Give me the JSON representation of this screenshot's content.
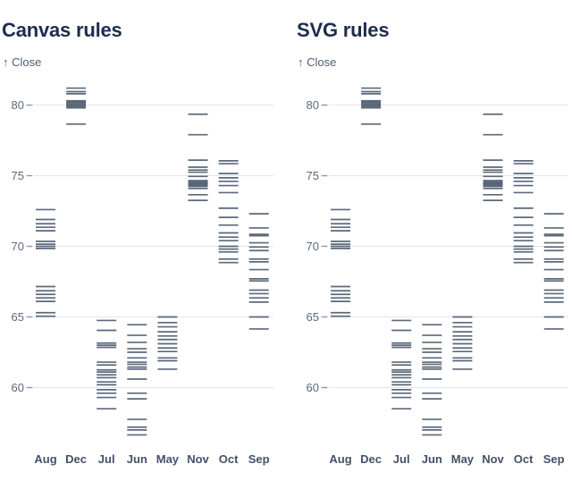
{
  "charts": [
    {
      "title": "Canvas rules",
      "legend_label": "↑ Close"
    },
    {
      "title": "SVG rules",
      "legend_label": "↑ Close"
    }
  ],
  "chart_data": {
    "type": "tick",
    "note_both_charts_show_same_data": true,
    "ylabel": "Close",
    "categories": [
      "Aug",
      "Dec",
      "Jul",
      "Jun",
      "May",
      "Nov",
      "Oct",
      "Sep"
    ],
    "yticks": [
      80,
      75,
      70,
      65,
      60
    ],
    "ylim": [
      56.3,
      81.6
    ],
    "grid": true,
    "series": [
      {
        "name": "Aug",
        "values": [
          72.6,
          71.9,
          71.6,
          71.35,
          71.1,
          70.35,
          70.15,
          70.0,
          69.85,
          67.15,
          66.85,
          66.6,
          66.35,
          66.1,
          65.3,
          65.05
        ]
      },
      {
        "name": "Dec",
        "values": [
          81.2,
          80.95,
          80.8,
          80.3,
          80.2,
          80.1,
          80.0,
          79.9,
          79.8,
          78.65
        ]
      },
      {
        "name": "Jul",
        "values": [
          64.75,
          64.05,
          63.15,
          63.0,
          62.85,
          61.8,
          61.6,
          61.25,
          61.1,
          60.9,
          60.7,
          60.4,
          60.2,
          59.85,
          59.6,
          59.3,
          58.5
        ]
      },
      {
        "name": "Jun",
        "values": [
          64.45,
          63.7,
          63.2,
          62.75,
          62.5,
          62.1,
          61.8,
          61.65,
          61.45,
          61.3,
          60.6,
          59.6,
          59.2,
          57.75,
          57.2,
          57.0,
          56.65
        ]
      },
      {
        "name": "May",
        "values": [
          65.0,
          64.6,
          64.3,
          63.95,
          63.65,
          63.4,
          63.1,
          62.8,
          62.55,
          62.1,
          61.9,
          61.3
        ]
      },
      {
        "name": "Nov",
        "values": [
          79.35,
          77.9,
          76.1,
          75.6,
          75.4,
          75.25,
          74.95,
          74.65,
          74.55,
          74.45,
          74.35,
          74.25,
          74.1,
          73.65,
          73.25
        ]
      },
      {
        "name": "Oct",
        "values": [
          76.05,
          75.85,
          75.15,
          74.85,
          74.6,
          74.3,
          73.8,
          72.7,
          72.05,
          71.5,
          70.95,
          70.65,
          70.4,
          70.0,
          69.8,
          69.6,
          69.1,
          68.85
        ]
      },
      {
        "name": "Sep",
        "values": [
          72.3,
          71.3,
          70.85,
          70.75,
          70.25,
          69.95,
          69.7,
          69.1,
          68.9,
          68.35,
          67.7,
          67.55,
          66.9,
          66.65,
          66.35,
          66.05,
          65.0,
          64.15
        ]
      }
    ],
    "colors": {
      "tick": "#2d3f55",
      "gridline": "#e1e5ea",
      "axis_dash": "#8d9aa9",
      "axis_label": "#5a6a7d",
      "month_label": "#42526a",
      "title": "#1c2d4f",
      "legend": "#4d5d72",
      "background": "#ffffff"
    }
  }
}
